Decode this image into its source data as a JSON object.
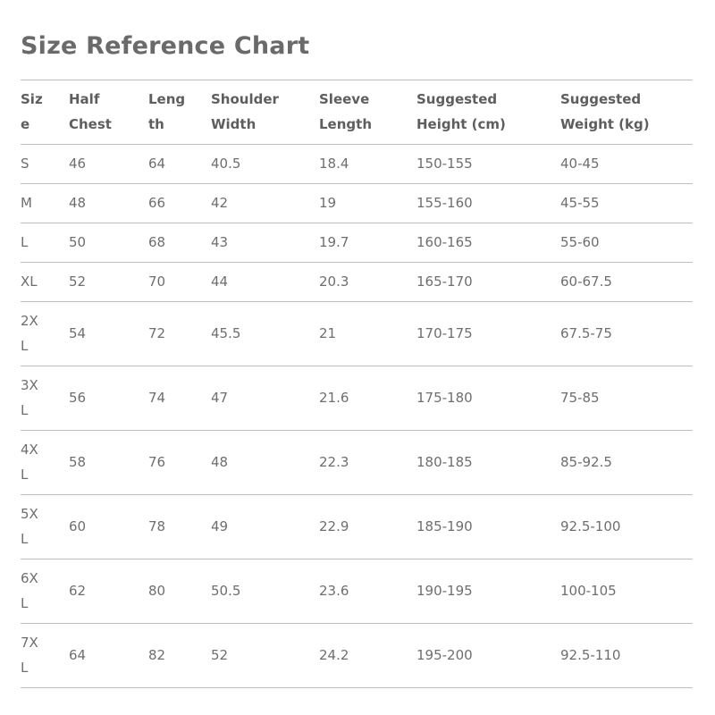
{
  "title": "Size Reference Chart",
  "columns": [
    "Size",
    "Half Chest",
    "Length",
    "Shoulder Width",
    "Sleeve Length",
    "Suggested Height (cm)",
    "Suggested Weight (kg)"
  ],
  "rows": [
    [
      "S",
      "46",
      "64",
      "40.5",
      "18.4",
      "150-155",
      "40-45"
    ],
    [
      "M",
      "48",
      "66",
      "42",
      "19",
      "155-160",
      "45-55"
    ],
    [
      "L",
      "50",
      "68",
      "43",
      "19.7",
      "160-165",
      "55-60"
    ],
    [
      "XL",
      "52",
      "70",
      "44",
      "20.3",
      "165-170",
      "60-67.5"
    ],
    [
      "2XL",
      "54",
      "72",
      "45.5",
      "21",
      "170-175",
      "67.5-75"
    ],
    [
      "3XL",
      "56",
      "74",
      "47",
      "21.6",
      "175-180",
      "75-85"
    ],
    [
      "4XL",
      "58",
      "76",
      "48",
      "22.3",
      "180-185",
      "85-92.5"
    ],
    [
      "5XL",
      "60",
      "78",
      "49",
      "22.9",
      "185-190",
      "92.5-100"
    ],
    [
      "6XL",
      "62",
      "80",
      "50.5",
      "23.6",
      "190-195",
      "100-105"
    ],
    [
      "7XL",
      "64",
      "82",
      "52",
      "24.2",
      "195-200",
      "92.5-110"
    ]
  ]
}
